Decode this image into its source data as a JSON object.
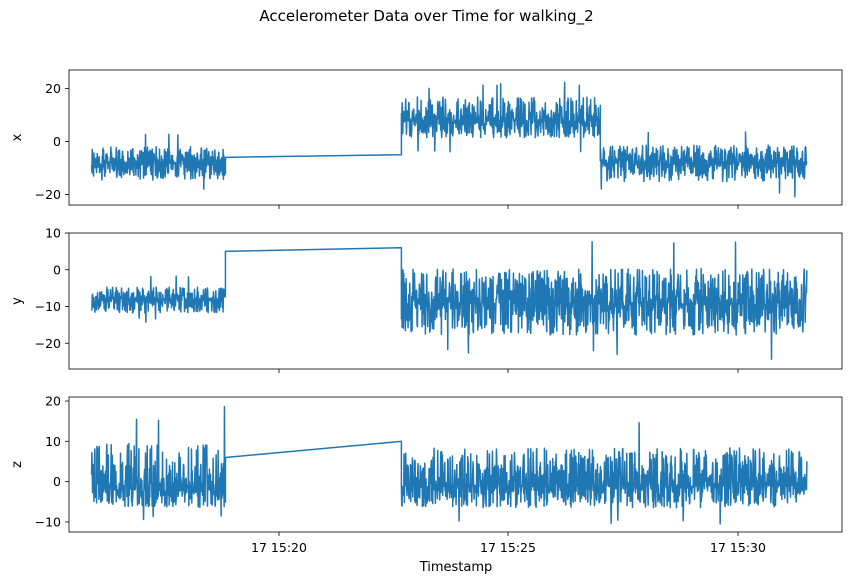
{
  "figure": {
    "title": "Accelerometer Data over Time for walking_2",
    "xlabel": "Timestamp",
    "xticks": [
      "17 15:20",
      "17 15:25",
      "17 15:30"
    ],
    "line_color": "#1f77b4"
  },
  "chart_data": [
    {
      "type": "line",
      "ylabel": "x",
      "yticks": [
        -20,
        0,
        20
      ],
      "ylim": [
        -24,
        27
      ],
      "segments": [
        {
          "x_start": "15:15:55",
          "x_end": "15:18:50",
          "center": -8,
          "amp_low": -20,
          "amp_high": 3
        },
        {
          "x_start": "15:22:40",
          "x_end": "15:27:00",
          "center": 8,
          "amp_low": -4,
          "amp_high": 24
        },
        {
          "x_start": "15:27:00",
          "x_end": "15:31:30",
          "center": -8,
          "amp_low": -21,
          "amp_high": 4
        }
      ],
      "bridge": [
        {
          "x": "15:18:50",
          "y": -6
        },
        {
          "x": "15:22:40",
          "y": -5
        }
      ]
    },
    {
      "type": "line",
      "ylabel": "y",
      "yticks": [
        -20,
        -10,
        0,
        10
      ],
      "ylim": [
        -27,
        10
      ],
      "segments": [
        {
          "x_start": "15:15:55",
          "x_end": "15:18:50",
          "center": -8,
          "amp_low": -15,
          "amp_high": -2
        },
        {
          "x_start": "15:22:40",
          "x_end": "15:31:30",
          "center": -9,
          "amp_low": -25,
          "amp_high": 8
        }
      ],
      "bridge": [
        {
          "x": "15:18:50",
          "y": 5
        },
        {
          "x": "15:22:40",
          "y": 6
        }
      ]
    },
    {
      "type": "line",
      "ylabel": "z",
      "yticks": [
        -10,
        0,
        10,
        20
      ],
      "ylim": [
        -12.5,
        21
      ],
      "segments": [
        {
          "x_start": "15:15:55",
          "x_end": "15:18:50",
          "center": -2,
          "amp_low": -10,
          "amp_high": 19
        },
        {
          "x_start": "15:22:40",
          "x_end": "15:31:30",
          "center": -1,
          "amp_low": -11,
          "amp_high": 16
        }
      ],
      "bridge": [
        {
          "x": "15:18:50",
          "y": 6
        },
        {
          "x": "15:22:40",
          "y": 10
        }
      ]
    }
  ]
}
